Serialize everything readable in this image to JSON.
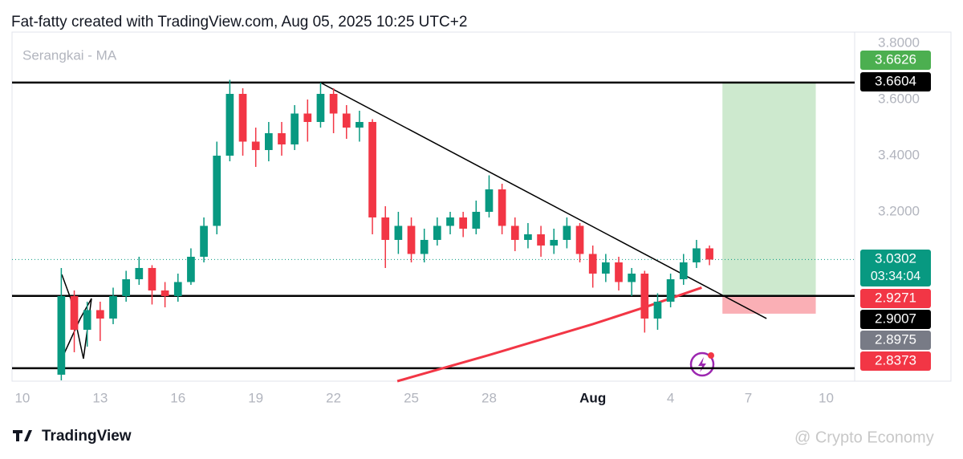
{
  "header": "Fat-fatty created with TradingView.com, Aug 05, 2025 10:25 UTC+2",
  "brand": "TradingView",
  "watermark": "@ Crypto Economy",
  "chart_data": {
    "type": "candlestick",
    "title": "Serangkai - MA",
    "x": [
      11.5,
      12,
      12.5,
      13,
      13.5,
      14,
      14.5,
      15,
      15.5,
      16,
      16.5,
      17,
      17.5,
      18,
      18.5,
      19,
      19.5,
      20,
      20.5,
      21,
      21.5,
      22,
      22.5,
      23,
      23.5,
      24,
      24.5,
      25,
      25.5,
      26,
      26.5,
      27,
      27.5,
      28,
      28.5,
      29,
      29.5,
      30,
      30.5,
      31,
      31.5,
      32,
      32.5,
      33,
      33.5,
      34,
      34.5,
      35,
      35.5,
      36,
      36.5
    ],
    "open": [
      2.62,
      2.9,
      2.78,
      2.85,
      2.82,
      2.9,
      2.96,
      3.0,
      2.92,
      2.9,
      2.95,
      3.04,
      3.15,
      3.4,
      3.62,
      3.45,
      3.42,
      3.48,
      3.44,
      3.55,
      3.52,
      3.62,
      3.55,
      3.5,
      3.52,
      3.18,
      3.1,
      3.15,
      3.05,
      3.1,
      3.15,
      3.18,
      3.14,
      3.2,
      3.28,
      3.15,
      3.1,
      3.12,
      3.08,
      3.1,
      3.15,
      3.05,
      2.98,
      3.02,
      2.95,
      2.98,
      2.82,
      2.88,
      2.96,
      3.02,
      3.07
    ],
    "high": [
      3.0,
      2.92,
      2.88,
      2.88,
      2.93,
      2.99,
      3.04,
      3.01,
      2.95,
      2.98,
      3.07,
      3.18,
      3.45,
      3.67,
      3.64,
      3.5,
      3.52,
      3.52,
      3.58,
      3.6,
      3.66,
      3.64,
      3.58,
      3.56,
      3.53,
      3.22,
      3.2,
      3.18,
      3.14,
      3.18,
      3.2,
      3.2,
      3.24,
      3.33,
      3.3,
      3.18,
      3.16,
      3.15,
      3.14,
      3.18,
      3.16,
      3.08,
      3.05,
      3.04,
      3.0,
      2.99,
      2.91,
      2.98,
      3.05,
      3.1,
      3.08
    ],
    "low": [
      2.6,
      2.7,
      2.72,
      2.74,
      2.8,
      2.88,
      2.94,
      2.87,
      2.86,
      2.88,
      2.94,
      3.02,
      3.12,
      3.38,
      3.4,
      3.36,
      3.38,
      3.4,
      3.42,
      3.45,
      3.5,
      3.48,
      3.46,
      3.45,
      3.12,
      3.0,
      3.05,
      3.02,
      3.02,
      3.08,
      3.12,
      3.11,
      3.12,
      3.18,
      3.12,
      3.06,
      3.07,
      3.04,
      3.05,
      3.07,
      3.02,
      2.93,
      2.95,
      2.92,
      2.9,
      2.77,
      2.78,
      2.86,
      2.94,
      3.0,
      3.01
    ],
    "close": [
      2.9,
      2.78,
      2.85,
      2.82,
      2.9,
      2.96,
      3.0,
      2.92,
      2.9,
      2.95,
      3.04,
      3.15,
      3.4,
      3.62,
      3.45,
      3.42,
      3.48,
      3.44,
      3.55,
      3.52,
      3.62,
      3.55,
      3.5,
      3.52,
      3.18,
      3.1,
      3.15,
      3.05,
      3.1,
      3.15,
      3.18,
      3.14,
      3.2,
      3.28,
      3.15,
      3.1,
      3.12,
      3.08,
      3.1,
      3.15,
      3.05,
      2.98,
      3.02,
      2.95,
      2.98,
      2.82,
      2.88,
      2.96,
      3.02,
      3.07,
      3.03
    ],
    "up_color": "#089981",
    "down_color": "#f23645",
    "xlim": [
      9.6,
      42.1
    ],
    "xticks": [
      10,
      13,
      16,
      19,
      22,
      25,
      28,
      {
        "value": 32,
        "label": "Aug"
      },
      {
        "value": 35,
        "label": "4"
      },
      {
        "value": 38,
        "label": "7"
      },
      {
        "value": 41,
        "label": "10"
      }
    ],
    "ylim": [
      2.597,
      3.84
    ],
    "yticks": [
      {
        "value": 3.8,
        "label": "3.8000"
      },
      {
        "value": 3.6,
        "label": "3.6000"
      },
      {
        "value": 3.4,
        "label": "3.4000"
      },
      {
        "value": 3.2,
        "label": "3.2000"
      }
    ],
    "levels": [
      3.6604,
      2.9007,
      2.643
    ],
    "trendline": {
      "x": [
        21.5,
        38.7
      ],
      "y": [
        3.66,
        2.82
      ]
    },
    "ma": {
      "x": [
        24.46,
        28,
        32,
        34,
        36.2
      ],
      "y": [
        2.597,
        2.69,
        2.8,
        2.86,
        2.93
      ],
      "color": "#f23645"
    },
    "position": {
      "x": [
        37.0,
        40.6
      ],
      "target": 3.6626,
      "entry": 2.8975,
      "stop": 2.8373
    },
    "last_price": 3.0302,
    "countdown": "03:34:04",
    "price_labels": [
      {
        "value": 3.6626,
        "color": "#4caf50"
      },
      {
        "value": 3.6604,
        "color": "#000000"
      },
      {
        "value": 3.0302,
        "color": "#089981"
      },
      {
        "value": 2.9271,
        "color": "#f23645"
      },
      {
        "value": 2.9007,
        "color": "#000000"
      },
      {
        "value": 2.8975,
        "color": "#787b86"
      },
      {
        "value": 2.8373,
        "color": "#f23645"
      }
    ]
  }
}
